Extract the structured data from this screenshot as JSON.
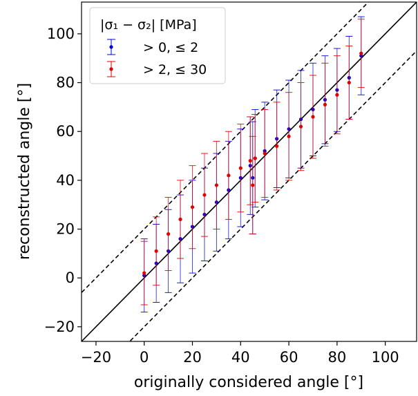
{
  "chart_data": {
    "type": "scatter",
    "xlabel": "originally considered angle [°]",
    "ylabel": "reconstructed angle [°]",
    "xlim": [
      -26,
      113
    ],
    "ylim": [
      -26,
      113
    ],
    "xticks": [
      -20,
      0,
      20,
      40,
      60,
      80,
      100
    ],
    "yticks": [
      -20,
      0,
      20,
      40,
      60,
      80,
      100
    ],
    "xtick_labels": [
      "−20",
      "0",
      "20",
      "40",
      "60",
      "80",
      "100"
    ],
    "ytick_labels": [
      "−20",
      "0",
      "20",
      "40",
      "60",
      "80",
      "100"
    ],
    "grid": false,
    "legend": {
      "position": "top-left",
      "title": "|σ₁ − σ₂| [MPa]",
      "entries": [
        "> 0,  ≤ 2",
        "> 2,  ≤ 30"
      ]
    },
    "reference_lines": [
      {
        "style": "solid",
        "slope": 1,
        "intercept": 0
      },
      {
        "style": "dashed",
        "slope": 1,
        "intercept": 20
      },
      {
        "style": "dashed",
        "slope": 1,
        "intercept": -20
      }
    ],
    "series": [
      {
        "name": "> 0,  ≤ 2",
        "color": "#0000dd",
        "x": [
          0,
          5,
          10,
          15,
          20,
          25,
          30,
          35,
          40,
          44,
          45,
          46,
          50,
          55,
          60,
          65,
          70,
          75,
          80,
          85,
          90
        ],
        "y": [
          1,
          6,
          11,
          16,
          21,
          26,
          31,
          36,
          41,
          46,
          41,
          49,
          52,
          57,
          61,
          65,
          69,
          73,
          77,
          82,
          91
        ],
        "err": [
          15,
          16,
          17,
          18,
          19,
          19,
          20,
          20,
          20,
          20,
          23,
          20,
          20,
          20,
          20,
          20,
          19,
          18,
          17,
          17,
          16
        ]
      },
      {
        "name": "> 2,  ≤ 30",
        "color": "#e00000",
        "x": [
          0,
          5,
          10,
          15,
          20,
          25,
          30,
          35,
          40,
          44,
          45,
          46,
          50,
          55,
          60,
          65,
          70,
          75,
          80,
          85,
          90
        ],
        "y": [
          2,
          11,
          18,
          24,
          29,
          34,
          38,
          42,
          45,
          48,
          38,
          49,
          51,
          54,
          58,
          62,
          66,
          71,
          75,
          80,
          92
        ],
        "err": [
          13,
          14,
          15,
          16,
          17,
          17,
          18,
          18,
          18,
          18,
          20,
          18,
          18,
          18,
          18,
          18,
          17,
          17,
          16,
          15,
          14
        ]
      }
    ]
  }
}
